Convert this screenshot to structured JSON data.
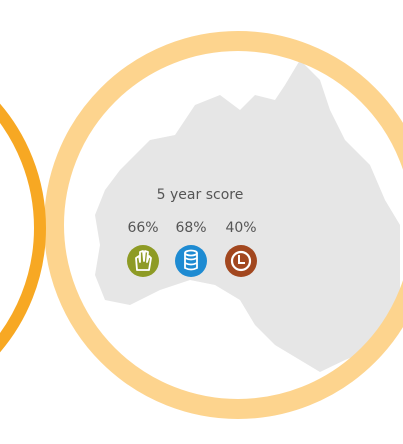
{
  "score_panel": {
    "title": "5 year score",
    "items": [
      {
        "label": "66%"
      },
      {
        "label": "68%"
      },
      {
        "label": "40%"
      }
    ]
  }
}
